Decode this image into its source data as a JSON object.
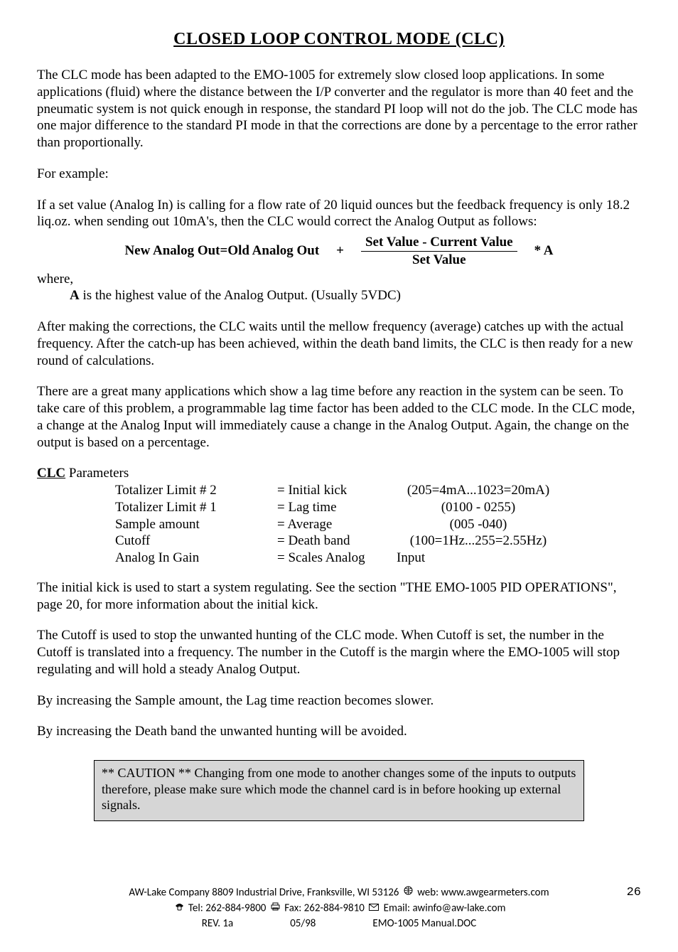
{
  "title": "CLOSED LOOP CONTROL MODE  (CLC)",
  "para1": "The CLC mode has been adapted to the EMO-1005 for extremely slow closed loop applications. In some applications (fluid) where the distance between the I/P converter and the regulator is more than 40 feet and the pneumatic system is not quick enough in response, the standard PI loop will not do the job. The CLC mode has one major difference to the standard PI mode in that the corrections are done by a percentage to the error rather than proportionally.",
  "para2": " For example:",
  "para3": "If a set value (Analog In) is calling for a flow rate of 20 liquid ounces but the feedback frequency is only 18.2  liq.oz. when sending out 10mA's,  then the CLC would correct the Analog Output as follows:",
  "formula": {
    "left": "New Analog Out=Old Analog Out",
    "plus": "+",
    "num": "Set Value - Current Value",
    "den": "Set Value",
    "times": "* A"
  },
  "where_label": "where,",
  "where_body_prefix": "A",
  "where_body_rest": " is the highest value of the Analog Output. (Usually 5VDC)",
  "para4": "After making the corrections, the CLC waits until the mellow frequency (average) catches up with the actual frequency. After the catch-up has been achieved, within the death band limits, the CLC is then ready for a new round of  calculations.",
  "para5": "There are a great many applications which show a lag time before any reaction in the system can be seen. To take care of this problem, a programmable lag time factor has been added to the CLC mode. In the CLC mode, a change at the  Analog Input will immediately cause a change in the Analog Output. Again, the change on the output is based on a  percentage.",
  "params_head_ul": "CLC",
  "params_head_rest": " Parameters",
  "params": [
    {
      "c1": "Totalizer Limit # 2",
      "c2": "= Initial kick",
      "c3": "(205=4mA...1023=20mA)"
    },
    {
      "c1": "Totalizer Limit # 1",
      "c2": "= Lag time",
      "c3": "(0100 - 0255)"
    },
    {
      "c1": "Sample amount",
      "c2": "= Average",
      "c3": "(005 -040)"
    },
    {
      "c1": "Cutoff",
      "c2": "= Death band",
      "c3": "(100=1Hz...255=2.55Hz)"
    },
    {
      "c1": "Analog In Gain",
      "c2": "= Scales Analog",
      "c3": "Input",
      "c3_left": true
    }
  ],
  "para6": "The initial kick is used to start a system regulating. See the section \"THE EMO-1005 PID OPERATIONS\", page 20, for more information about the initial kick.",
  "para7": "The Cutoff is used to stop the unwanted hunting of the CLC mode. When Cutoff is set, the number in the Cutoff is translated into a frequency. The number in the Cutoff is the margin where the EMO-1005 will stop regulating and will hold a steady Analog Output.",
  "para8": "By increasing the Sample amount, the Lag time reaction becomes slower.",
  "para9": "By increasing the Death band the unwanted hunting will be avoided.",
  "caution": "** CAUTION ** Changing from one mode to another changes some of the inputs to outputs therefore, please make sure which mode the channel card is in before hooking up external signals.",
  "footer": {
    "line1_a": "AW-Lake Company 8809 Industrial Drive, Franksville, WI 53126",
    "line1_web_label": " web: ",
    "line1_web": "www.awgearmeters.com",
    "tel_label": " Tel:  ",
    "tel": "262-884-9800",
    "fax_label": "  Fax:  ",
    "fax": "262-884-9810",
    "email_label": " Email: ",
    "email": "awinfo@aw-lake.com",
    "rev": "REV. 1a",
    "date": "05/98",
    "doc": "EMO-1005 Manual.DOC",
    "page": "26"
  }
}
